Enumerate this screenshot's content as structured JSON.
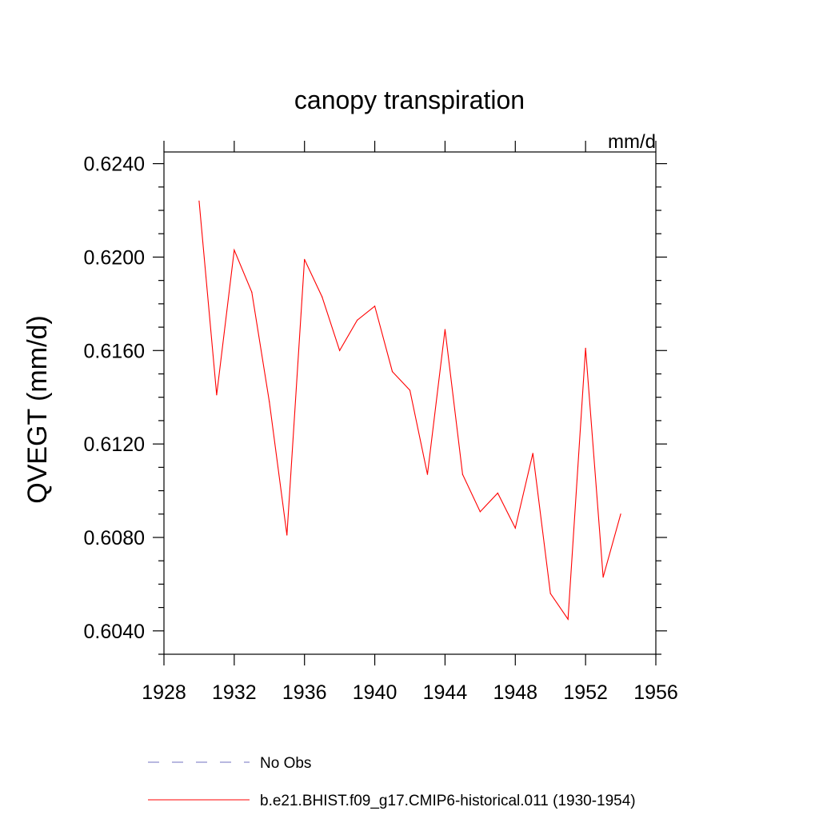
{
  "chart_data": {
    "type": "line",
    "title": "canopy transpiration",
    "units_label": "mm/d",
    "ylabel": "QVEGT  (mm/d)",
    "xlabel": "",
    "xlim": [
      1928,
      1956
    ],
    "ylim": [
      0.603,
      0.6245
    ],
    "x_major_ticks": [
      1928,
      1932,
      1936,
      1940,
      1944,
      1948,
      1952,
      1956
    ],
    "x_tick_labels": [
      "1928",
      "1932",
      "1936",
      "1940",
      "1944",
      "1948",
      "1952",
      "1956"
    ],
    "y_major_ticks": [
      0.604,
      0.608,
      0.612,
      0.616,
      0.62,
      0.624
    ],
    "y_tick_labels": [
      "0.6040",
      "0.6080",
      "0.6120",
      "0.6160",
      "0.6200",
      "0.6240"
    ],
    "grid": false,
    "series": [
      {
        "name": "b.e21.BHIST.f09_g17.CMIP6-historical.011 (1930-1954)",
        "color": "#ff0000",
        "style": "solid",
        "x": [
          1930,
          1931,
          1932,
          1933,
          1934,
          1935,
          1936,
          1937,
          1938,
          1939,
          1940,
          1941,
          1942,
          1943,
          1944,
          1945,
          1946,
          1947,
          1948,
          1949,
          1950,
          1951,
          1952,
          1953,
          1954
        ],
        "y": [
          0.6224,
          0.6141,
          0.6203,
          0.6185,
          0.6138,
          0.6081,
          0.6199,
          0.6183,
          0.616,
          0.6173,
          0.6179,
          0.6151,
          0.6143,
          0.6107,
          0.6169,
          0.6107,
          0.6091,
          0.6099,
          0.6084,
          0.6116,
          0.6056,
          0.6045,
          0.6161,
          0.6063,
          0.609
        ]
      }
    ],
    "legend": {
      "position": "bottom",
      "entries": [
        {
          "label": "No Obs",
          "color": "#7070c0",
          "style": "dashed"
        },
        {
          "label": "b.e21.BHIST.f09_g17.CMIP6-historical.011 (1930-1954)",
          "color": "#ff0000",
          "style": "solid"
        }
      ]
    }
  }
}
